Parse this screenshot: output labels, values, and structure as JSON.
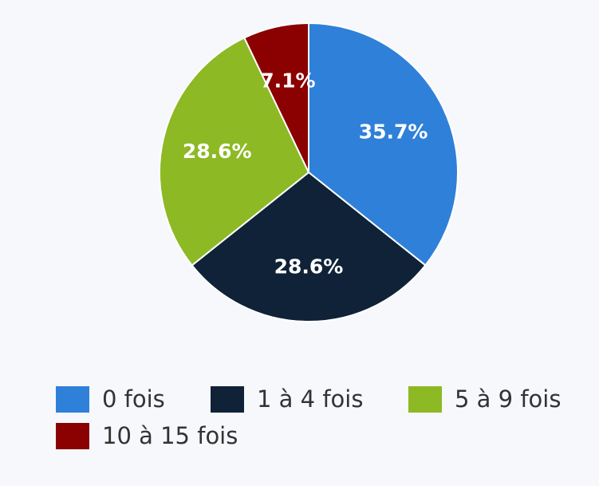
{
  "chart_data": {
    "type": "pie",
    "title": "",
    "categories": [
      "0 fois",
      "1 à 4 fois",
      "5 à 9 fois",
      "10 à 15 fois"
    ],
    "values": [
      35.7,
      28.6,
      28.6,
      7.1
    ],
    "labels": [
      "35.7%",
      "28.6%",
      "28.6%",
      "7.1%"
    ],
    "colors": [
      "#2f80d9",
      "#0f2238",
      "#8db924",
      "#8b0000"
    ],
    "legend_position": "bottom"
  }
}
